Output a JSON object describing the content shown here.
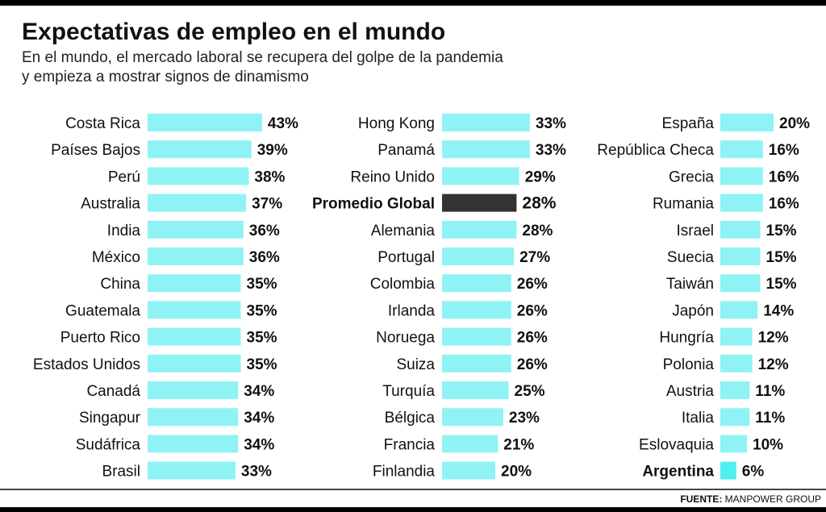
{
  "title": "Expectativas de empleo en el mundo",
  "subtitle_line1": "En el mundo, el mercado laboral se recupera del golpe de la pandemia",
  "subtitle_line2": "y empieza a mostrar signos de dinamismo",
  "source_label": "FUENTE:",
  "source_value": "MANPOWER GROUP",
  "colors": {
    "bar": "#8ff3f5",
    "highlight_bar": "#333333",
    "argentina_bar": "#4ff0f0",
    "text": "#111111"
  },
  "chart_data": {
    "type": "bar",
    "orientation": "horizontal",
    "unit": "%",
    "value_format": "percent",
    "columns": [
      {
        "categories": [
          "Costa Rica",
          "Países Bajos",
          "Perú",
          "Australia",
          "India",
          "México",
          "China",
          "Guatemala",
          "Puerto Rico",
          "Estados Unidos",
          "Canadá",
          "Singapur",
          "Sudáfrica",
          "Brasil"
        ],
        "values": [
          43,
          39,
          38,
          37,
          36,
          36,
          35,
          35,
          35,
          35,
          34,
          34,
          34,
          33
        ]
      },
      {
        "categories": [
          "Hong Kong",
          "Panamá",
          "Reino Unido",
          "Promedio Global",
          "Alemania",
          "Portugal",
          "Colombia",
          "Irlanda",
          "Noruega",
          "Suiza",
          "Turquía",
          "Bélgica",
          "Francia",
          "Finlandia"
        ],
        "values": [
          33,
          33,
          29,
          28,
          28,
          27,
          26,
          26,
          26,
          26,
          25,
          23,
          21,
          20
        ]
      },
      {
        "categories": [
          "España",
          "República Checa",
          "Grecia",
          "Rumania",
          "Israel",
          "Suecia",
          "Taiwán",
          "Japón",
          "Hungría",
          "Polonia",
          "Austria",
          "Italia",
          "Eslovaquia",
          "Argentina"
        ],
        "values": [
          20,
          16,
          16,
          16,
          15,
          15,
          15,
          14,
          12,
          12,
          11,
          11,
          10,
          6
        ]
      }
    ],
    "highlighted": [
      "Promedio Global",
      "Argentina"
    ]
  }
}
